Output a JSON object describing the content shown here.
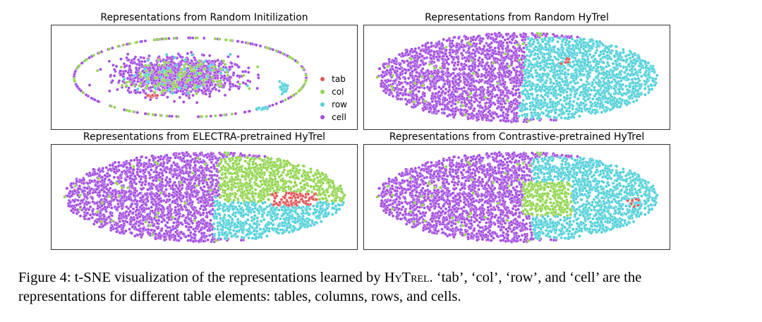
{
  "colors": {
    "tab": "#e05555",
    "col": "#8fd44a",
    "row": "#4ecfd8",
    "cell": "#a24be0"
  },
  "legend": {
    "entries": [
      {
        "key": "tab",
        "label": "tab"
      },
      {
        "key": "col",
        "label": "col"
      },
      {
        "key": "row",
        "label": "row"
      },
      {
        "key": "cell",
        "label": "cell"
      }
    ]
  },
  "chart_data": [
    {
      "type": "scatter",
      "title": "Representations from Random Initilization",
      "axes": "off",
      "series": [
        "tab",
        "col",
        "row",
        "cell"
      ],
      "pattern": "mixed"
    },
    {
      "type": "scatter",
      "title": "Representations from Random HyTrel",
      "axes": "off",
      "series": [
        "tab",
        "col",
        "row",
        "cell"
      ],
      "pattern": "two-clusters"
    },
    {
      "type": "scatter",
      "title": "Representations from ELECTRA-pretrained HyTrel",
      "axes": "off",
      "series": [
        "tab",
        "col",
        "row",
        "cell"
      ],
      "pattern": "four-clusters"
    },
    {
      "type": "scatter",
      "title": "Representations from Contrastive-pretrained HyTrel",
      "axes": "off",
      "series": [
        "tab",
        "col",
        "row",
        "cell"
      ],
      "pattern": "three-clusters"
    }
  ],
  "caption": {
    "lead": "Figure 4: t-SNE visualization of the representations learned by ",
    "model_name": "HyTrel",
    "tail": ". ‘tab’, ‘col’, ‘row’, and ‘cell’ are the representations for different table elements: tables, columns, rows, and cells."
  }
}
